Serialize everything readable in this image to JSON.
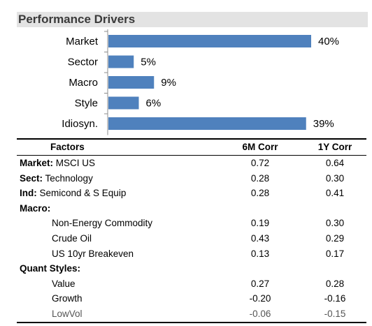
{
  "title": "Performance Drivers",
  "chart_data": {
    "type": "bar",
    "orientation": "horizontal",
    "categories": [
      "Market",
      "Sector",
      "Macro",
      "Style",
      "Idiosyn."
    ],
    "values": [
      40,
      5,
      9,
      6,
      39
    ],
    "value_labels": [
      "40%",
      "5%",
      "9%",
      "6%",
      "39%"
    ],
    "bar_color": "#4f81bd",
    "xlim": [
      0,
      40
    ],
    "grid": false
  },
  "table": {
    "headers": {
      "factor": "Factors",
      "m6": "6M Corr",
      "y1": "1Y Corr"
    },
    "rows": [
      {
        "bold": "Market:",
        "label": " MSCI US",
        "m6": "0.72",
        "y1": "0.64"
      },
      {
        "bold": "Sect:",
        "label": " Technology",
        "m6": "0.28",
        "y1": "0.30"
      },
      {
        "bold": "Ind:",
        "label": " Semicond & S Equip",
        "m6": "0.28",
        "y1": "0.41"
      },
      {
        "bold": "Macro:",
        "label": "",
        "m6": "",
        "y1": ""
      },
      {
        "bold": "",
        "label": "Non-Energy Commodity",
        "m6": "0.19",
        "y1": "0.30",
        "indent": true
      },
      {
        "bold": "",
        "label": "Crude Oil",
        "m6": "0.43",
        "y1": "0.29",
        "indent": true
      },
      {
        "bold": "",
        "label": "US 10yr Breakeven",
        "m6": "0.13",
        "y1": "0.17",
        "indent": true
      },
      {
        "bold": "Quant Styles:",
        "label": "",
        "m6": "",
        "y1": ""
      },
      {
        "bold": "",
        "label": "Value",
        "m6": "0.27",
        "y1": "0.28",
        "indent": true
      },
      {
        "bold": "",
        "label": "Growth",
        "m6": "-0.20",
        "y1": "-0.16",
        "indent": true
      },
      {
        "bold": "",
        "label": "LowVol",
        "m6": "-0.06",
        "y1": "-0.15",
        "indent": true,
        "muted": true
      }
    ]
  }
}
